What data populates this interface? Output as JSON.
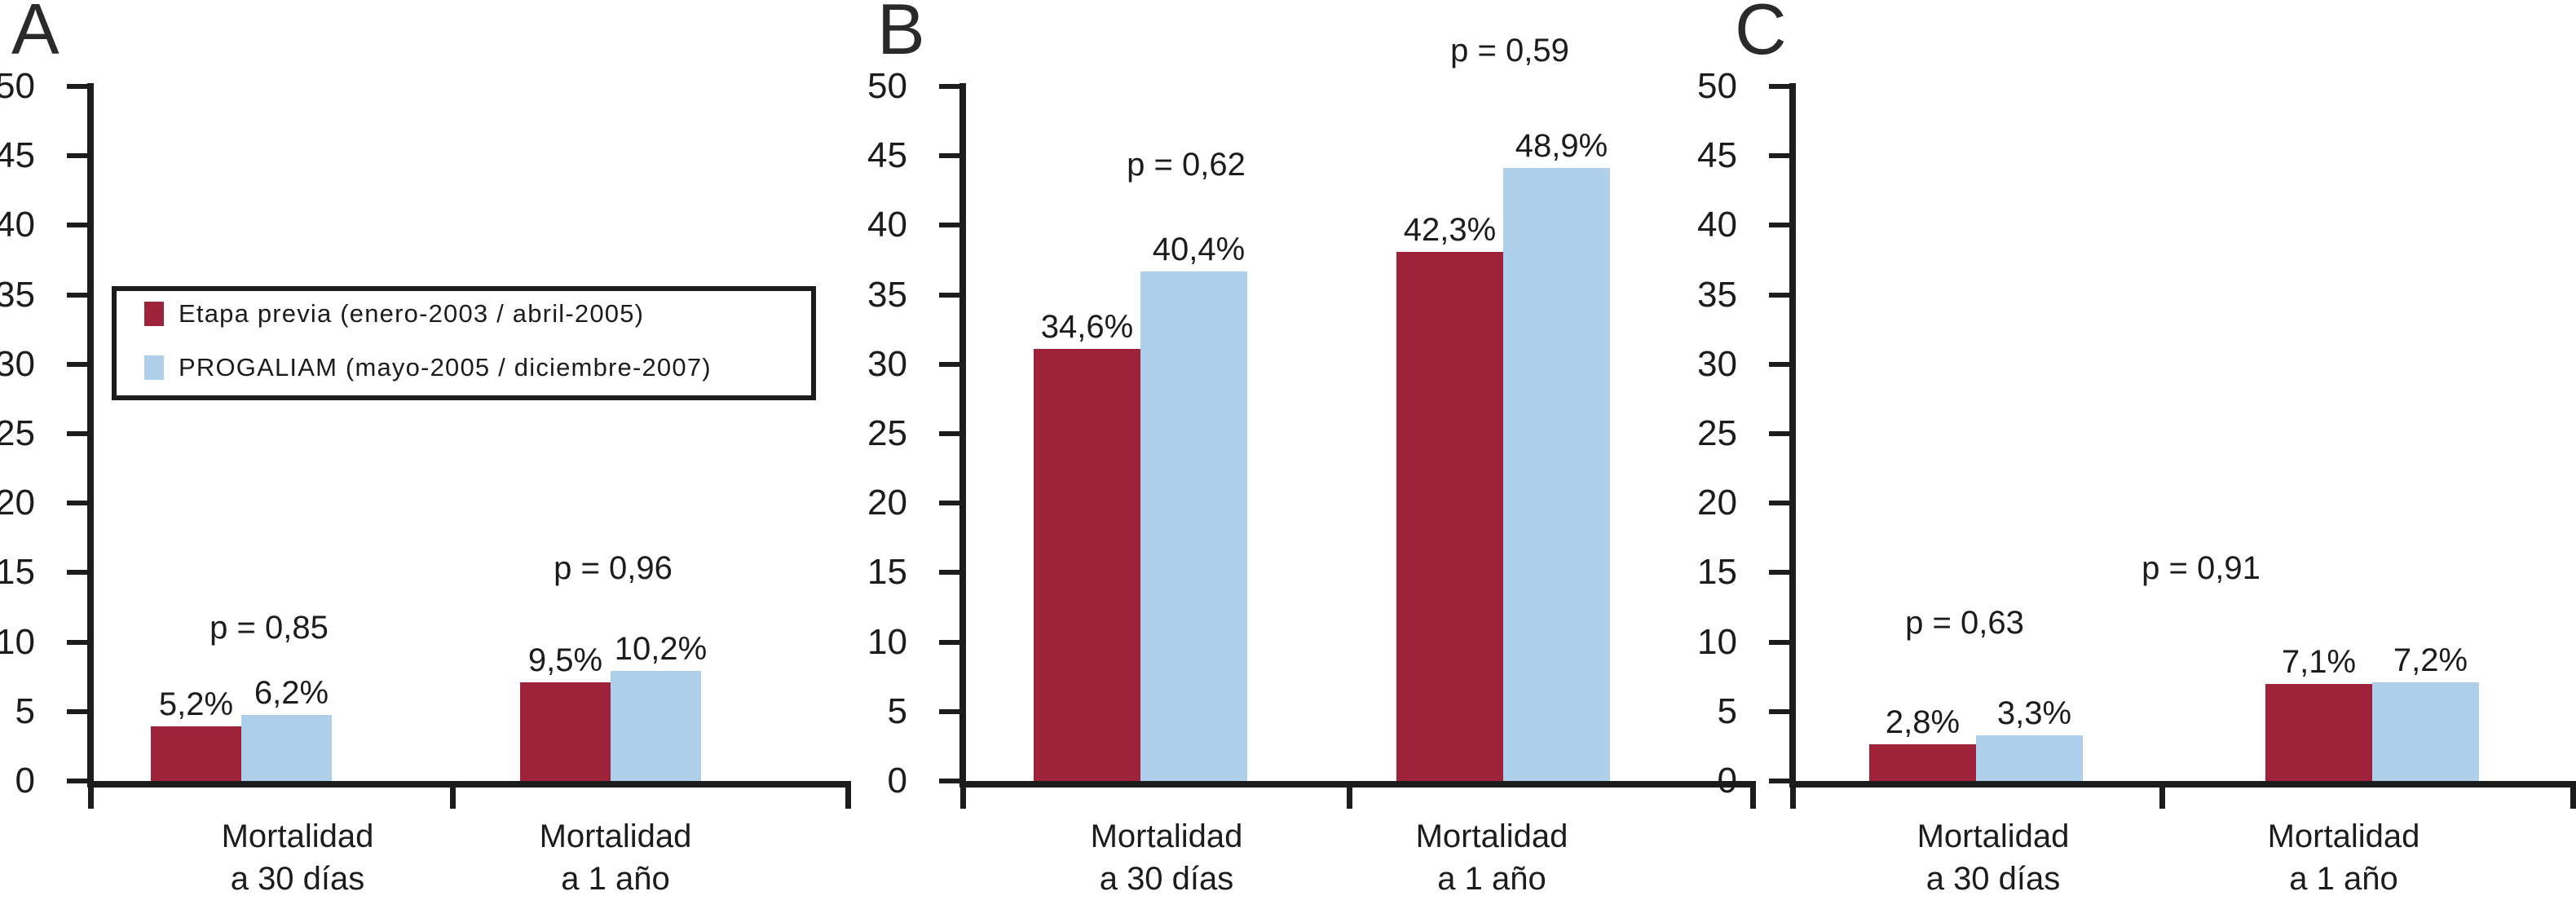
{
  "legend": {
    "items": [
      {
        "label": "Etapa previa (enero-2003 / abril-2005)",
        "color": "#9E2239"
      },
      {
        "label": "PROGALIAM (mayo-2005 / diciembre-2007)",
        "color": "#AECFEA"
      }
    ]
  },
  "chart_data": [
    {
      "panel": "A",
      "type": "bar",
      "categories": [
        "Mortalidad a 30 días",
        "Mortalidad a 1 año"
      ],
      "categories_lines": [
        [
          "Mortalidad",
          "a 30 días"
        ],
        [
          "Mortalidad",
          "a 1 año"
        ]
      ],
      "series": [
        {
          "name": "Etapa previa (enero-2003 / abril-2005)",
          "color": "#9E2239",
          "values": [
            5.2,
            9.5
          ],
          "labels": [
            "5,2%",
            "9,5%"
          ]
        },
        {
          "name": "PROGALIAM (mayo-2005 / diciembre-2007)",
          "color": "#AECFEA",
          "values": [
            6.2,
            10.2
          ],
          "labels": [
            "6,2%",
            "10,2%"
          ]
        }
      ],
      "p_values": [
        "p = 0,85",
        "p = 0,96"
      ],
      "ylim": [
        0,
        50
      ],
      "yticks": [
        "0",
        "5",
        "10",
        "15",
        "20",
        "25",
        "30",
        "35",
        "40",
        "45",
        "50"
      ],
      "legend_visible": true,
      "grid": false,
      "legend_position": "upper-left"
    },
    {
      "panel": "B",
      "type": "bar",
      "categories": [
        "Mortalidad a 30 días",
        "Mortalidad a 1 año"
      ],
      "categories_lines": [
        [
          "Mortalidad",
          "a 30 días"
        ],
        [
          "Mortalidad",
          "a 1 año"
        ]
      ],
      "series": [
        {
          "name": "Etapa previa (enero-2003 / abril-2005)",
          "color": "#9E2239",
          "values": [
            34.6,
            42.3
          ],
          "labels": [
            "34,6%",
            "42,3%"
          ]
        },
        {
          "name": "PROGALIAM (mayo-2005 / diciembre-2007)",
          "color": "#AECFEA",
          "values": [
            40.4,
            48.9
          ],
          "labels": [
            "40,4%",
            "48,9%"
          ]
        }
      ],
      "p_values": [
        "p = 0,62",
        "p = 0,59"
      ],
      "ylim": [
        0,
        50
      ],
      "yticks": [
        "0",
        "5",
        "10",
        "15",
        "20",
        "25",
        "30",
        "35",
        "40",
        "45",
        "50"
      ],
      "legend_visible": false,
      "grid": false,
      "legend_position": "none"
    },
    {
      "panel": "C",
      "type": "bar",
      "categories": [
        "Mortalidad a 30 días",
        "Mortalidad a 1 año"
      ],
      "categories_lines": [
        [
          "Mortalidad",
          "a 30 días"
        ],
        [
          "Mortalidad",
          "a 1 año"
        ]
      ],
      "series": [
        {
          "name": "Etapa previa (enero-2003 / abril-2005)",
          "color": "#9E2239",
          "values": [
            2.8,
            7.1
          ],
          "labels": [
            "2,8%",
            "7,1%"
          ]
        },
        {
          "name": "PROGALIAM (mayo-2005 / diciembre-2007)",
          "color": "#AECFEA",
          "values": [
            3.3,
            7.2
          ],
          "labels": [
            "3,3%",
            "7,2%"
          ]
        }
      ],
      "p_values": [
        "p = 0,63",
        "p = 0,91"
      ],
      "ylim": [
        0,
        50
      ],
      "yticks": [
        "0",
        "5",
        "10",
        "15",
        "20",
        "25",
        "30",
        "35",
        "40",
        "45",
        "50"
      ],
      "legend_visible": false,
      "grid": false,
      "legend_position": "none"
    }
  ]
}
